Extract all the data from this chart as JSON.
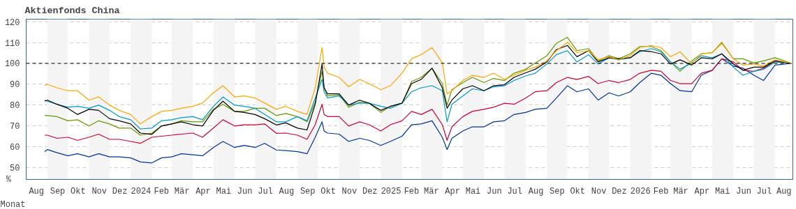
{
  "chart_data": {
    "type": "line",
    "title": "Aktienfonds China",
    "xlabel": "Monat",
    "ylabel": "%",
    "x": [
      "2023-08-28",
      "2023-09-01",
      "2023-09-15",
      "2023-10-01",
      "2023-10-15",
      "2023-11-01",
      "2023-11-15",
      "2023-12-01",
      "2023-12-15",
      "2024-01-01",
      "2024-01-15",
      "2024-02-01",
      "2024-02-15",
      "2024-03-01",
      "2024-03-15",
      "2024-04-01",
      "2024-04-15",
      "2024-05-01",
      "2024-05-15",
      "2024-06-01",
      "2024-06-15",
      "2024-07-01",
      "2024-07-15",
      "2024-08-01",
      "2024-08-15",
      "2024-09-01",
      "2024-09-15",
      "2024-09-27",
      "2024-10-07",
      "2024-10-10",
      "2024-10-15",
      "2024-11-01",
      "2024-11-15",
      "2024-12-01",
      "2024-12-15",
      "2025-01-01",
      "2025-01-15",
      "2025-02-01",
      "2025-02-15",
      "2025-03-01",
      "2025-03-17",
      "2025-04-01",
      "2025-04-08",
      "2025-04-15",
      "2025-05-01",
      "2025-05-15",
      "2025-06-01",
      "2025-06-15",
      "2025-07-01",
      "2025-07-15",
      "2025-08-01",
      "2025-08-15",
      "2025-09-01",
      "2025-09-15",
      "2025-10-01",
      "2025-10-15",
      "2025-11-01",
      "2025-11-15",
      "2025-12-01",
      "2025-12-15",
      "2026-01-01",
      "2026-01-15",
      "2026-02-01",
      "2026-02-15",
      "2026-03-01",
      "2026-03-15",
      "2026-04-01",
      "2026-04-15",
      "2026-05-01",
      "2026-05-15",
      "2026-06-01",
      "2026-06-15",
      "2026-07-01",
      "2026-07-15",
      "2026-08-01",
      "2026-08-25"
    ],
    "xlim": [
      "2023-08-01",
      "2026-08-27"
    ],
    "xticks": [
      {
        "value": "2023-08-16",
        "label": "Aug"
      },
      {
        "value": "2023-09-16",
        "label": "Sep"
      },
      {
        "value": "2023-10-16",
        "label": "Okt"
      },
      {
        "value": "2023-11-16",
        "label": "Nov"
      },
      {
        "value": "2023-12-16",
        "label": "Dez"
      },
      {
        "value": "2024-01-16",
        "label": "2024"
      },
      {
        "value": "2024-02-15",
        "label": "Feb"
      },
      {
        "value": "2024-03-16",
        "label": "Mär"
      },
      {
        "value": "2024-04-16",
        "label": "Apr"
      },
      {
        "value": "2024-05-16",
        "label": "Mai"
      },
      {
        "value": "2024-06-16",
        "label": "Jun"
      },
      {
        "value": "2024-07-16",
        "label": "Jul"
      },
      {
        "value": "2024-08-16",
        "label": "Aug"
      },
      {
        "value": "2024-09-16",
        "label": "Sep"
      },
      {
        "value": "2024-10-16",
        "label": "Okt"
      },
      {
        "value": "2024-11-16",
        "label": "Nov"
      },
      {
        "value": "2024-12-16",
        "label": "Dez"
      },
      {
        "value": "2025-01-16",
        "label": "2025"
      },
      {
        "value": "2025-02-15",
        "label": "Feb"
      },
      {
        "value": "2025-03-16",
        "label": "Mär"
      },
      {
        "value": "2025-04-16",
        "label": "Apr"
      },
      {
        "value": "2025-05-16",
        "label": "Mai"
      },
      {
        "value": "2025-06-16",
        "label": "Jun"
      },
      {
        "value": "2025-07-16",
        "label": "Jul"
      },
      {
        "value": "2025-08-16",
        "label": "Aug"
      },
      {
        "value": "2025-09-16",
        "label": "Sep"
      },
      {
        "value": "2025-10-16",
        "label": "Okt"
      },
      {
        "value": "2025-11-16",
        "label": "Nov"
      },
      {
        "value": "2025-12-16",
        "label": "Dez"
      },
      {
        "value": "2026-01-16",
        "label": "2026"
      },
      {
        "value": "2026-02-15",
        "label": "Feb"
      },
      {
        "value": "2026-03-16",
        "label": "Mär"
      },
      {
        "value": "2026-04-16",
        "label": "Apr"
      },
      {
        "value": "2026-05-16",
        "label": "Mai"
      },
      {
        "value": "2026-06-16",
        "label": "Jun"
      },
      {
        "value": "2026-07-16",
        "label": "Jul"
      },
      {
        "value": "2026-08-14",
        "label": "Aug"
      }
    ],
    "ylim": [
      44.4,
      121.2
    ],
    "yticks": [
      50,
      60,
      70,
      80,
      90,
      100,
      110,
      120
    ],
    "grid": "y",
    "ref_lines": [
      {
        "axis": "y",
        "value": 100,
        "color": "#000000",
        "line_style": "dashed"
      }
    ],
    "bands": [
      {
        "axis": "x",
        "from": "2023-09-01",
        "to": "2023-10-01",
        "color": "#f4f4f4"
      },
      {
        "axis": "x",
        "from": "2023-11-01",
        "to": "2023-12-01",
        "color": "#f4f4f4"
      },
      {
        "axis": "x",
        "from": "2024-01-01",
        "to": "2024-02-01",
        "color": "#f4f4f4"
      },
      {
        "axis": "x",
        "from": "2024-03-01",
        "to": "2024-04-01",
        "color": "#f4f4f4"
      },
      {
        "axis": "x",
        "from": "2024-05-01",
        "to": "2024-06-01",
        "color": "#f4f4f4"
      },
      {
        "axis": "x",
        "from": "2024-07-01",
        "to": "2024-08-01",
        "color": "#f4f4f4"
      },
      {
        "axis": "x",
        "from": "2024-09-01",
        "to": "2024-10-01",
        "color": "#f4f4f4"
      },
      {
        "axis": "x",
        "from": "2024-11-01",
        "to": "2024-12-01",
        "color": "#f4f4f4"
      },
      {
        "axis": "x",
        "from": "2025-01-01",
        "to": "2025-02-01",
        "color": "#f4f4f4"
      },
      {
        "axis": "x",
        "from": "2025-03-01",
        "to": "2025-04-01",
        "color": "#f4f4f4"
      },
      {
        "axis": "x",
        "from": "2025-05-01",
        "to": "2025-06-01",
        "color": "#f4f4f4"
      },
      {
        "axis": "x",
        "from": "2025-07-01",
        "to": "2025-08-01",
        "color": "#f4f4f4"
      },
      {
        "axis": "x",
        "from": "2025-09-01",
        "to": "2025-10-01",
        "color": "#f4f4f4"
      },
      {
        "axis": "x",
        "from": "2025-11-01",
        "to": "2025-12-01",
        "color": "#f4f4f4"
      },
      {
        "axis": "x",
        "from": "2026-01-01",
        "to": "2026-02-01",
        "color": "#f4f4f4"
      },
      {
        "axis": "x",
        "from": "2026-03-01",
        "to": "2026-04-01",
        "color": "#f4f4f4"
      },
      {
        "axis": "x",
        "from": "2026-05-01",
        "to": "2026-06-01",
        "color": "#f4f4f4"
      },
      {
        "axis": "x",
        "from": "2026-07-01",
        "to": "2026-08-01",
        "color": "#f4f4f4"
      }
    ],
    "series": [
      {
        "color": "#003399",
        "values": [
          57.7,
          58.7,
          57.2,
          55.7,
          56.7,
          55.2,
          56.7,
          55.2,
          55.2,
          54.7,
          52.8,
          52.3,
          54.7,
          55.2,
          56.7,
          56.2,
          55.7,
          59.7,
          62.6,
          59.7,
          60.7,
          59.7,
          61.7,
          58.5,
          58.2,
          57.7,
          56.7,
          64.6,
          72,
          67.6,
          66.6,
          66.1,
          62.6,
          64.1,
          63.1,
          60.7,
          62.6,
          65.1,
          70.6,
          71,
          72.5,
          64.6,
          58.7,
          64.1,
          67.6,
          69.6,
          69.6,
          72,
          72.5,
          75.5,
          76.5,
          78,
          78.5,
          83.4,
          89.3,
          86.4,
          87.8,
          82.4,
          85.9,
          84.4,
          86.4,
          90.8,
          95.3,
          94.3,
          90.3,
          86.9,
          86.4,
          94.3,
          96.7,
          102.2,
          98.7,
          97.7,
          94.3,
          91.8,
          99.2,
          100
        ]
      },
      {
        "color": "#cc0033",
        "values": [
          65.6,
          65.6,
          64.1,
          64.6,
          63.1,
          64.6,
          66.1,
          63.6,
          63.6,
          62.6,
          61.7,
          64.6,
          65.1,
          65.6,
          66.1,
          66.6,
          64.6,
          69,
          73,
          70,
          70.6,
          70.6,
          71,
          66.5,
          66.6,
          65.6,
          63.6,
          70.6,
          80.4,
          75.5,
          74.5,
          74.5,
          70,
          72,
          70.6,
          67.6,
          70.6,
          72.5,
          77,
          75.5,
          78,
          70.6,
          63.1,
          69.6,
          74.5,
          77,
          78,
          79,
          80.9,
          80.4,
          83.4,
          86.4,
          86.9,
          90.8,
          93.3,
          92.3,
          93.8,
          90.3,
          91.8,
          90.8,
          92.3,
          95.3,
          96.7,
          96.2,
          91.8,
          90.3,
          90.3,
          95.3,
          96.7,
          102.2,
          100.7,
          96.7,
          96.2,
          97.7,
          101.2,
          100
        ]
      },
      {
        "color": "#669900",
        "values": [
          75,
          75,
          74.5,
          72.5,
          73,
          70,
          72.5,
          71,
          69,
          69,
          65.6,
          66.6,
          70,
          71,
          72.5,
          72,
          72,
          78,
          80.4,
          77,
          77,
          78.5,
          78.5,
          75,
          76,
          74.5,
          72,
          81.4,
          96.2,
          88.3,
          84.4,
          84.9,
          79,
          81.4,
          80.9,
          76.5,
          79.4,
          80.9,
          91.3,
          93.3,
          97.7,
          90.3,
          80,
          87.4,
          90.8,
          93.3,
          90.8,
          92.8,
          91.8,
          95.3,
          97.2,
          100.2,
          103.7,
          109.6,
          112.5,
          106.1,
          107.1,
          101.2,
          103.7,
          102.2,
          104.6,
          108.1,
          108.1,
          106.1,
          100.7,
          96.2,
          101.2,
          104.6,
          105.1,
          110.1,
          102.2,
          102.2,
          100.2,
          101.2,
          102.7,
          100
        ]
      },
      {
        "color": "#0099cc",
        "values": [
          82.4,
          81.9,
          80.4,
          79,
          79.4,
          78.5,
          80,
          77.5,
          74.5,
          73,
          68.6,
          69,
          72.5,
          73,
          74,
          74.5,
          73,
          79.4,
          83.9,
          80,
          79.4,
          78.5,
          75.5,
          72,
          72,
          74.5,
          72.5,
          83.4,
          92.3,
          86.4,
          83.4,
          84.4,
          80,
          80.9,
          80.9,
          79.4,
          78.5,
          80.9,
          86.4,
          88.3,
          89.3,
          86.9,
          72,
          80.4,
          84.4,
          87.8,
          86.9,
          88.8,
          89.3,
          91.8,
          94,
          95.3,
          99.7,
          104.2,
          106.1,
          100.7,
          104.2,
          99.7,
          102.7,
          101.7,
          102.7,
          105.6,
          107.1,
          105.6,
          100.7,
          97.2,
          100.2,
          103.7,
          102.7,
          104.6,
          98.2,
          94.3,
          96.2,
          97.2,
          100.7,
          100
        ]
      },
      {
        "color": "#000000",
        "values": [
          81.9,
          82.4,
          80.4,
          78.5,
          75.5,
          78,
          77.5,
          73.5,
          72.5,
          71,
          66.6,
          66,
          70,
          71,
          72,
          70.6,
          70,
          77.5,
          81.9,
          77,
          76.5,
          75.5,
          73.5,
          70.5,
          71.5,
          69,
          68.1,
          80.4,
          99.7,
          88.3,
          85.4,
          85.4,
          80,
          82.4,
          80.9,
          77.5,
          79.4,
          80.9,
          90.3,
          92.3,
          97.7,
          88.3,
          78.5,
          82.4,
          87.8,
          89.3,
          86.9,
          89.3,
          89.8,
          93.3,
          95.5,
          97.2,
          100.7,
          106.6,
          108.6,
          103.2,
          106.1,
          100.7,
          102.7,
          102.2,
          102.7,
          106.1,
          105.6,
          104.6,
          99.7,
          101.7,
          99.2,
          102.7,
          102.2,
          104.6,
          99.7,
          96.7,
          98.2,
          98.2,
          101.2,
          100
        ]
      },
      {
        "color": "#ffa500",
        "values": [
          89.4,
          90,
          88.3,
          86.9,
          86.9,
          82.4,
          84,
          80,
          77.5,
          75.5,
          71,
          74.5,
          77,
          77.5,
          78.5,
          79.4,
          81,
          85.9,
          89.3,
          83.9,
          84.4,
          83.4,
          81,
          78,
          79.4,
          77,
          75.5,
          88.3,
          107.6,
          98.2,
          95.3,
          93.3,
          88.8,
          92.3,
          90.3,
          87.4,
          89.3,
          95.3,
          102.2,
          104.2,
          107.6,
          100.2,
          85.4,
          86.9,
          91.8,
          94.3,
          93.3,
          95.3,
          92.3,
          94.3,
          96.7,
          98.2,
          101.2,
          106.1,
          110.1,
          105.1,
          106.1,
          101.7,
          103.2,
          101.7,
          103.7,
          107.6,
          108.6,
          107.6,
          103.2,
          105.6,
          99.7,
          104.6,
          105.1,
          109.6,
          102.2,
          99.2,
          99.7,
          98.7,
          101.7,
          100
        ]
      }
    ]
  }
}
